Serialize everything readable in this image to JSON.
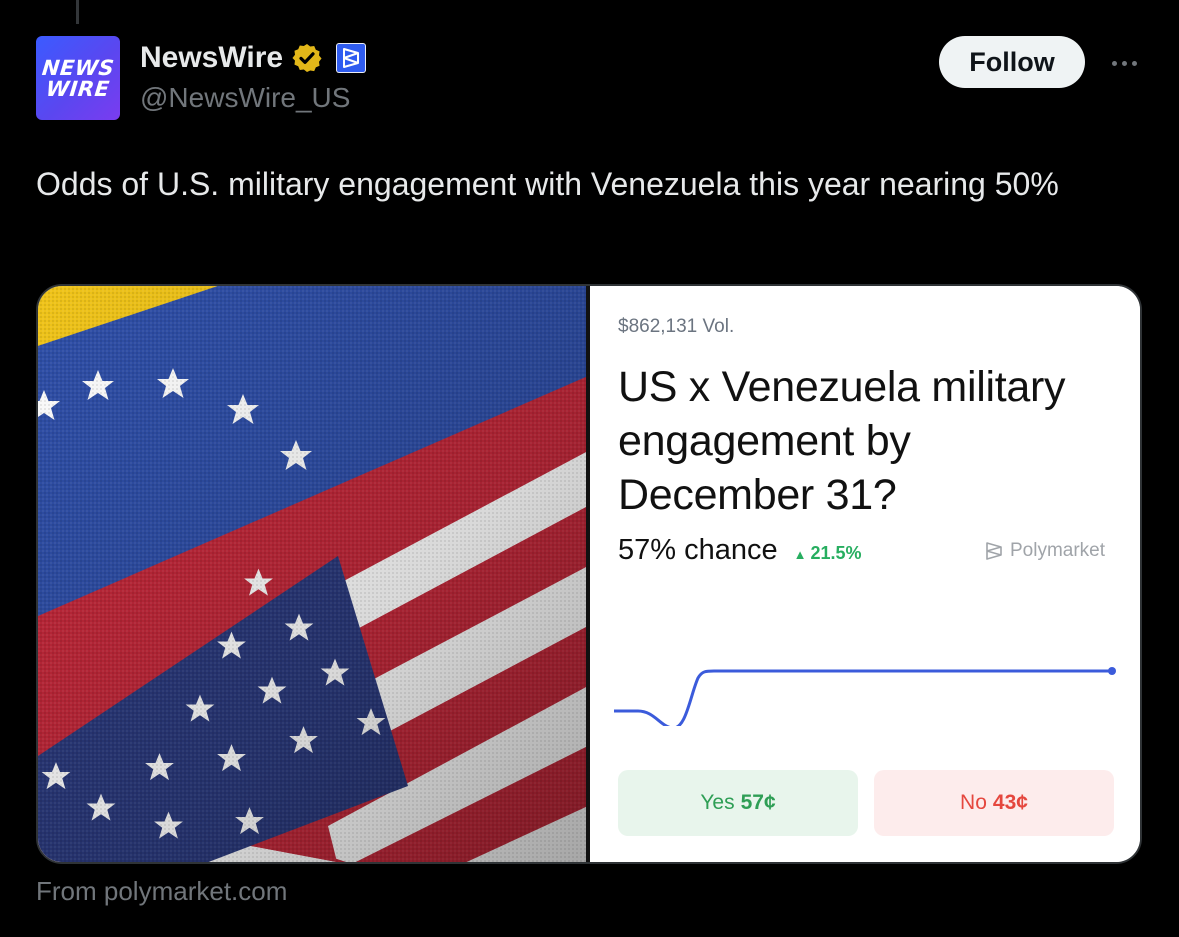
{
  "post": {
    "author": {
      "display_name": "NewsWire",
      "handle": "@NewsWire_US",
      "avatar_lines": [
        "NEWS",
        "WIRE"
      ],
      "verified_icon": "verified-badge-gold",
      "affiliate_icon": "polymarket-affiliate-icon"
    },
    "follow_label": "Follow",
    "more_icon": "more-icon",
    "text": "Odds of U.S. military engagement with Venezuela this year nearing 50%",
    "source": "From polymarket.com"
  },
  "card": {
    "image_alt": "Venezuelan and U.S. flags",
    "volume": "$862,131 Vol.",
    "title": "US x Venezuela military engagement by December 31?",
    "chance": "57% chance",
    "delta": "21.5%",
    "brand": "Polymarket",
    "yes_label": "Yes",
    "yes_price": "57¢",
    "no_label": "No",
    "no_price": "43¢"
  },
  "colors": {
    "background": "#000000",
    "follow_bg": "#eff3f4",
    "chart_line": "#3b5bdb",
    "yes_text": "#2e9e55",
    "no_text": "#e5473e"
  }
}
